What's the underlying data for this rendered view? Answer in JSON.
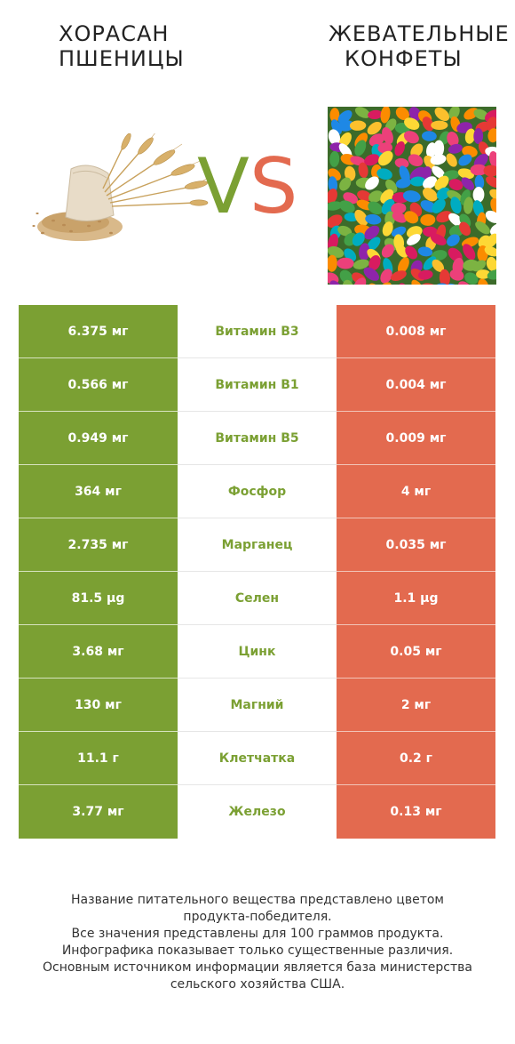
{
  "header": {
    "left_title": [
      "ХОРАСАН",
      "ПШЕНИЦЫ"
    ],
    "right_title": [
      "ЖЕВАТЕЛЬНЫЕ",
      "КОНФЕТЫ"
    ],
    "vs_v": "V",
    "vs_s": "S"
  },
  "colors": {
    "left": "#7ba033",
    "right": "#e36a4f"
  },
  "rows": [
    {
      "left": "6.375 мг",
      "name": "Витамин B3",
      "right": "0.008 мг",
      "winner": "left"
    },
    {
      "left": "0.566 мг",
      "name": "Витамин B1",
      "right": "0.004 мг",
      "winner": "left"
    },
    {
      "left": "0.949 мг",
      "name": "Витамин B5",
      "right": "0.009 мг",
      "winner": "left"
    },
    {
      "left": "364 мг",
      "name": "Фосфор",
      "right": "4 мг",
      "winner": "left"
    },
    {
      "left": "2.735 мг",
      "name": "Марганец",
      "right": "0.035 мг",
      "winner": "left"
    },
    {
      "left": "81.5 µg",
      "name": "Селен",
      "right": "1.1 µg",
      "winner": "left"
    },
    {
      "left": "3.68 мг",
      "name": "Цинк",
      "right": "0.05 мг",
      "winner": "left"
    },
    {
      "left": "130 мг",
      "name": "Магний",
      "right": "2 мг",
      "winner": "left"
    },
    {
      "left": "11.1 г",
      "name": "Клетчатка",
      "right": "0.2 г",
      "winner": "left"
    },
    {
      "left": "3.77 мг",
      "name": "Железо",
      "right": "0.13 мг",
      "winner": "left"
    }
  ],
  "footnote": [
    "Название питательного вещества представлено цветом",
    "продукта-победителя.",
    "Все значения представлены для 100 граммов продукта.",
    "Инфографика показывает только существенные различия.",
    "Основным источником информации является база министерства",
    "сельского хозяйства США."
  ]
}
